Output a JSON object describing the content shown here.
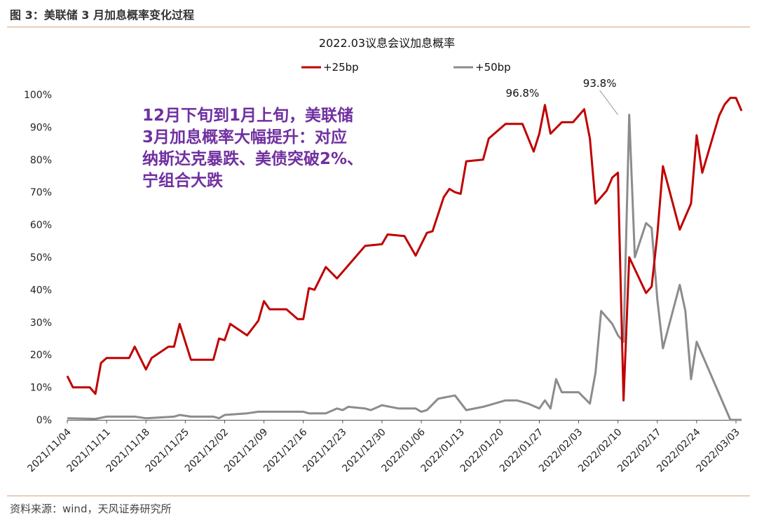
{
  "figure": {
    "title": "图 3：美联储 3 月加息概率变化过程",
    "source": "资料来源：wind，天风证券研究所"
  },
  "annotation_lines": [
    "12月下旬到1月上旬，美联储",
    "3月加息概率大幅提升：对应",
    "纳斯达克暴跌、美债突破2%、",
    "宁组合大跌"
  ],
  "colors": {
    "series_25bp": "#c00000",
    "series_50bp": "#8c8c8c",
    "annotation": "#7030a0",
    "rule": "#d9a17a"
  },
  "chart_data": {
    "type": "line",
    "title": "2022.03议息会议加息概率",
    "legend_position": "top",
    "grid": false,
    "x_range": [
      "2021/11/04",
      "2022/03/04"
    ],
    "x_ticks": [
      "2021/11/04",
      "2021/11/11",
      "2021/11/18",
      "2021/11/25",
      "2021/12/02",
      "2021/12/09",
      "2021/12/16",
      "2021/12/23",
      "2021/12/30",
      "2022/01/06",
      "2022/01/13",
      "2022/01/20",
      "2022/01/27",
      "2022/02/03",
      "2022/02/10",
      "2022/02/17",
      "2022/02/24",
      "2022/03/03"
    ],
    "y_ticks": [
      "0%",
      "10%",
      "20%",
      "30%",
      "40%",
      "50%",
      "60%",
      "70%",
      "80%",
      "90%",
      "100%"
    ],
    "ylim": [
      0,
      100
    ],
    "annotations": [
      {
        "x": "2022/01/26",
        "y": 96.8,
        "label": "96.8%"
      },
      {
        "x": "2022/02/10",
        "y": 93.8,
        "label": "93.8%"
      }
    ],
    "series": [
      {
        "name": "+25bp",
        "points": [
          [
            "2021/11/04",
            13.5
          ],
          [
            "2021/11/05",
            10
          ],
          [
            "2021/11/08",
            10
          ],
          [
            "2021/11/09",
            8
          ],
          [
            "2021/11/10",
            17.5
          ],
          [
            "2021/11/11",
            19
          ],
          [
            "2021/11/15",
            19
          ],
          [
            "2021/11/16",
            22.5
          ],
          [
            "2021/11/18",
            15.5
          ],
          [
            "2021/11/19",
            19
          ],
          [
            "2021/11/22",
            22.5
          ],
          [
            "2021/11/23",
            22.5
          ],
          [
            "2021/11/24",
            29.5
          ],
          [
            "2021/11/26",
            18.5
          ],
          [
            "2021/11/30",
            18.5
          ],
          [
            "2021/12/01",
            25
          ],
          [
            "2021/12/02",
            24.5
          ],
          [
            "2021/12/03",
            29.5
          ],
          [
            "2021/12/06",
            26
          ],
          [
            "2021/12/08",
            30.5
          ],
          [
            "2021/12/09",
            36.5
          ],
          [
            "2021/12/10",
            34
          ],
          [
            "2021/12/13",
            34
          ],
          [
            "2021/12/15",
            31
          ],
          [
            "2021/12/16",
            31
          ],
          [
            "2021/12/17",
            40.5
          ],
          [
            "2021/12/18",
            40
          ],
          [
            "2021/12/20",
            47
          ],
          [
            "2021/12/22",
            43.5
          ],
          [
            "2021/12/27",
            53.5
          ],
          [
            "2021/12/30",
            54
          ],
          [
            "2021/12/31",
            57
          ],
          [
            "2022/01/03",
            56.5
          ],
          [
            "2022/01/05",
            50.5
          ],
          [
            "2022/01/07",
            57.5
          ],
          [
            "2022/01/08",
            58
          ],
          [
            "2022/01/10",
            68.5
          ],
          [
            "2022/01/11",
            71
          ],
          [
            "2022/01/12",
            70
          ],
          [
            "2022/01/13",
            69.5
          ],
          [
            "2022/01/14",
            79.5
          ],
          [
            "2022/01/17",
            80
          ],
          [
            "2022/01/18",
            86.5
          ],
          [
            "2022/01/21",
            91
          ],
          [
            "2022/01/24",
            91
          ],
          [
            "2022/01/26",
            82.5
          ],
          [
            "2022/01/27",
            88
          ],
          [
            "2022/01/28",
            96.8
          ],
          [
            "2022/01/29",
            88
          ],
          [
            "2022/01/31",
            91.5
          ],
          [
            "2022/02/02",
            91.5
          ],
          [
            "2022/02/04",
            95.5
          ],
          [
            "2022/02/05",
            86.5
          ],
          [
            "2022/02/06",
            66.5
          ],
          [
            "2022/02/08",
            70.5
          ],
          [
            "2022/02/09",
            74.5
          ],
          [
            "2022/02/10",
            76
          ],
          [
            "2022/02/11",
            6
          ],
          [
            "2022/02/12",
            50
          ],
          [
            "2022/02/15",
            39
          ],
          [
            "2022/02/16",
            41
          ],
          [
            "2022/02/17",
            57
          ],
          [
            "2022/02/18",
            78
          ],
          [
            "2022/02/21",
            58.5
          ],
          [
            "2022/02/23",
            66.5
          ],
          [
            "2022/02/24",
            87.5
          ],
          [
            "2022/02/25",
            76
          ],
          [
            "2022/02/28",
            93.5
          ],
          [
            "2022/03/01",
            97
          ],
          [
            "2022/03/02",
            99
          ],
          [
            "2022/03/03",
            99
          ],
          [
            "2022/03/04",
            95
          ]
        ]
      },
      {
        "name": "+50bp",
        "points": [
          [
            "2021/11/04",
            0.5
          ],
          [
            "2021/11/09",
            0.3
          ],
          [
            "2021/11/11",
            1
          ],
          [
            "2021/11/16",
            1
          ],
          [
            "2021/11/18",
            0.5
          ],
          [
            "2021/11/23",
            1
          ],
          [
            "2021/11/24",
            1.5
          ],
          [
            "2021/11/26",
            1
          ],
          [
            "2021/11/30",
            1
          ],
          [
            "2021/12/01",
            0.5
          ],
          [
            "2021/12/02",
            1.5
          ],
          [
            "2021/12/06",
            2
          ],
          [
            "2021/12/08",
            2.5
          ],
          [
            "2021/12/10",
            2.5
          ],
          [
            "2021/12/14",
            2.5
          ],
          [
            "2021/12/16",
            2.5
          ],
          [
            "2021/12/17",
            2
          ],
          [
            "2021/12/20",
            2
          ],
          [
            "2021/12/22",
            3.5
          ],
          [
            "2021/12/23",
            3
          ],
          [
            "2021/12/24",
            4
          ],
          [
            "2021/12/27",
            3.5
          ],
          [
            "2021/12/28",
            3
          ],
          [
            "2021/12/30",
            4.5
          ],
          [
            "2022/01/02",
            3.5
          ],
          [
            "2022/01/05",
            3.5
          ],
          [
            "2022/01/06",
            2.5
          ],
          [
            "2022/01/07",
            3
          ],
          [
            "2022/01/09",
            6.5
          ],
          [
            "2022/01/12",
            7.5
          ],
          [
            "2022/01/14",
            3
          ],
          [
            "2022/01/17",
            4
          ],
          [
            "2022/01/21",
            6
          ],
          [
            "2022/01/23",
            6
          ],
          [
            "2022/01/25",
            5
          ],
          [
            "2022/01/27",
            3.5
          ],
          [
            "2022/01/28",
            6
          ],
          [
            "2022/01/29",
            3.5
          ],
          [
            "2022/01/30",
            12.5
          ],
          [
            "2022/01/31",
            8.5
          ],
          [
            "2022/02/03",
            8.5
          ],
          [
            "2022/02/05",
            5
          ],
          [
            "2022/02/06",
            14.5
          ],
          [
            "2022/02/07",
            33.5
          ],
          [
            "2022/02/09",
            29.5
          ],
          [
            "2022/02/10",
            26
          ],
          [
            "2022/02/11",
            24
          ],
          [
            "2022/02/12",
            93.8
          ],
          [
            "2022/02/13",
            50
          ],
          [
            "2022/02/15",
            60.5
          ],
          [
            "2022/02/16",
            59
          ],
          [
            "2022/02/17",
            37
          ],
          [
            "2022/02/18",
            22
          ],
          [
            "2022/02/21",
            41.5
          ],
          [
            "2022/02/22",
            33.5
          ],
          [
            "2022/02/23",
            12.5
          ],
          [
            "2022/02/24",
            24
          ],
          [
            "2022/03/02",
            0
          ],
          [
            "2022/03/04",
            0
          ]
        ]
      }
    ]
  }
}
